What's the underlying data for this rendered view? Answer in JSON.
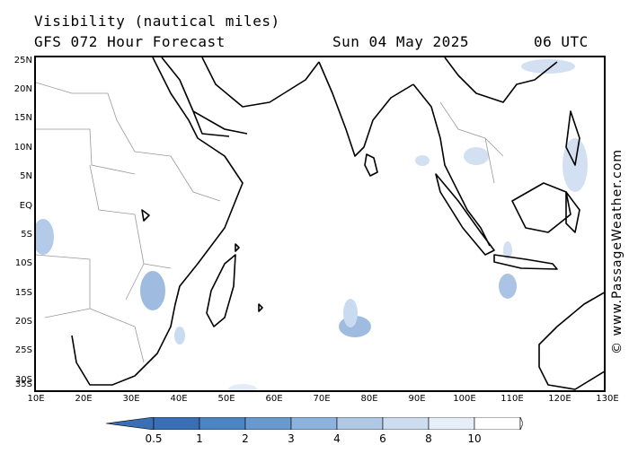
{
  "header": {
    "title": "Visibility (nautical miles)",
    "model": "GFS 072 Hour Forecast",
    "date": "Sun 04 May 2025",
    "time": "06 UTC"
  },
  "credit": "© www.PassageWeather.com",
  "map": {
    "lon_range": [
      10,
      130
    ],
    "lat_range": [
      -36,
      26
    ],
    "lat_labels": [
      "25N",
      "20N",
      "15N",
      "10N",
      "5N",
      "EQ",
      "5S",
      "10S",
      "15S",
      "20S",
      "25S",
      "30S",
      "35S"
    ],
    "lon_labels": [
      "10E",
      "20E",
      "30E",
      "40E",
      "50E",
      "60E",
      "70E",
      "80E",
      "90E",
      "100E",
      "110E",
      "120E",
      "130E"
    ],
    "coast_color": "#000000",
    "border_color": "#999999"
  },
  "legend": {
    "labels": [
      "0.5",
      "1",
      "2",
      "3",
      "4",
      "6",
      "8",
      "10"
    ],
    "colors": [
      "#3a6fb5",
      "#4d84c4",
      "#6a99cf",
      "#8db2dc",
      "#afc8e6",
      "#cddcef",
      "#e6eef8",
      "#ffffff"
    ]
  }
}
